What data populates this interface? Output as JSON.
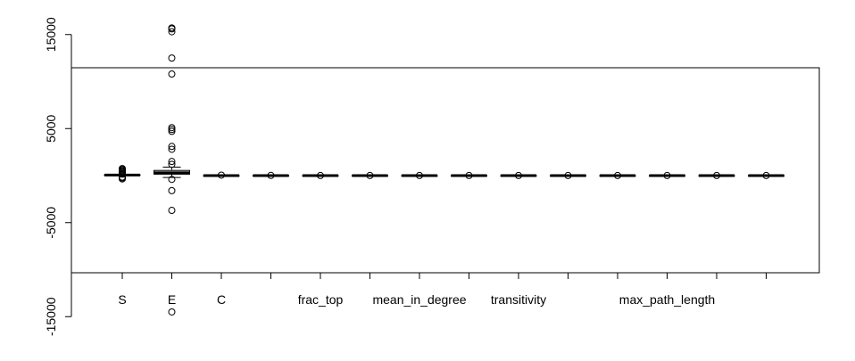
{
  "chart_data": {
    "type": "boxplot",
    "title": "",
    "xlabel": "",
    "ylabel": "",
    "ylim": [
      -16000,
      16500
    ],
    "yticks": [
      -15000,
      -5000,
      5000,
      15000
    ],
    "ytick_labels": [
      "-15000",
      "-5000",
      "5000",
      "15000"
    ],
    "categories": [
      "S",
      "E",
      "C",
      "",
      "frac_top",
      "",
      "mean_in_degree",
      "",
      "transitivity",
      "",
      "",
      "max_path_length",
      "",
      ""
    ],
    "boxes": [
      {
        "min": 30,
        "q1": 50,
        "median": 60,
        "q3": 70,
        "max": 90,
        "outliers": [
          -350,
          -250,
          -150,
          150,
          250,
          350,
          450,
          550,
          650,
          750
        ]
      },
      {
        "min": -200,
        "q1": 150,
        "median": 300,
        "q3": 550,
        "max": 900,
        "outliers": [
          -14500,
          -3700,
          -1600,
          -400,
          1200,
          1500,
          2800,
          3100,
          4700,
          4900,
          5100,
          10800,
          12500,
          15300,
          15600,
          15700
        ]
      },
      {
        "min": 0,
        "q1": 0,
        "median": 0,
        "q3": 0,
        "max": 0,
        "outliers": [
          50
        ]
      },
      {
        "min": 0,
        "q1": 0,
        "median": 0,
        "q3": 0,
        "max": 0,
        "outliers": [
          20
        ]
      },
      {
        "min": 0,
        "q1": 0,
        "median": 0,
        "q3": 0,
        "max": 0,
        "outliers": [
          10
        ]
      },
      {
        "min": 0,
        "q1": 0,
        "median": 0,
        "q3": 0,
        "max": 0,
        "outliers": [
          10
        ]
      },
      {
        "min": 0,
        "q1": 0,
        "median": 0,
        "q3": 0,
        "max": 0,
        "outliers": [
          10
        ]
      },
      {
        "min": 0,
        "q1": 0,
        "median": 0,
        "q3": 0,
        "max": 0,
        "outliers": [
          10
        ]
      },
      {
        "min": 0,
        "q1": 0,
        "median": 0,
        "q3": 0,
        "max": 0,
        "outliers": [
          10
        ]
      },
      {
        "min": 0,
        "q1": 0,
        "median": 0,
        "q3": 0,
        "max": 0,
        "outliers": [
          10
        ]
      },
      {
        "min": 0,
        "q1": 0,
        "median": 0,
        "q3": 0,
        "max": 0,
        "outliers": [
          10
        ]
      },
      {
        "min": 0,
        "q1": 0,
        "median": 0,
        "q3": 0,
        "max": 0,
        "outliers": [
          10
        ]
      },
      {
        "min": 0,
        "q1": 0,
        "median": 0,
        "q3": 0,
        "max": 0,
        "outliers": [
          10
        ]
      },
      {
        "min": 0,
        "q1": 0,
        "median": 0,
        "q3": 0,
        "max": 0,
        "outliers": [
          10
        ]
      }
    ],
    "colors": {
      "box_fill": "#d3d3d3",
      "stroke": "#000000",
      "background": "#ffffff"
    },
    "grid": false,
    "legend": "none"
  }
}
